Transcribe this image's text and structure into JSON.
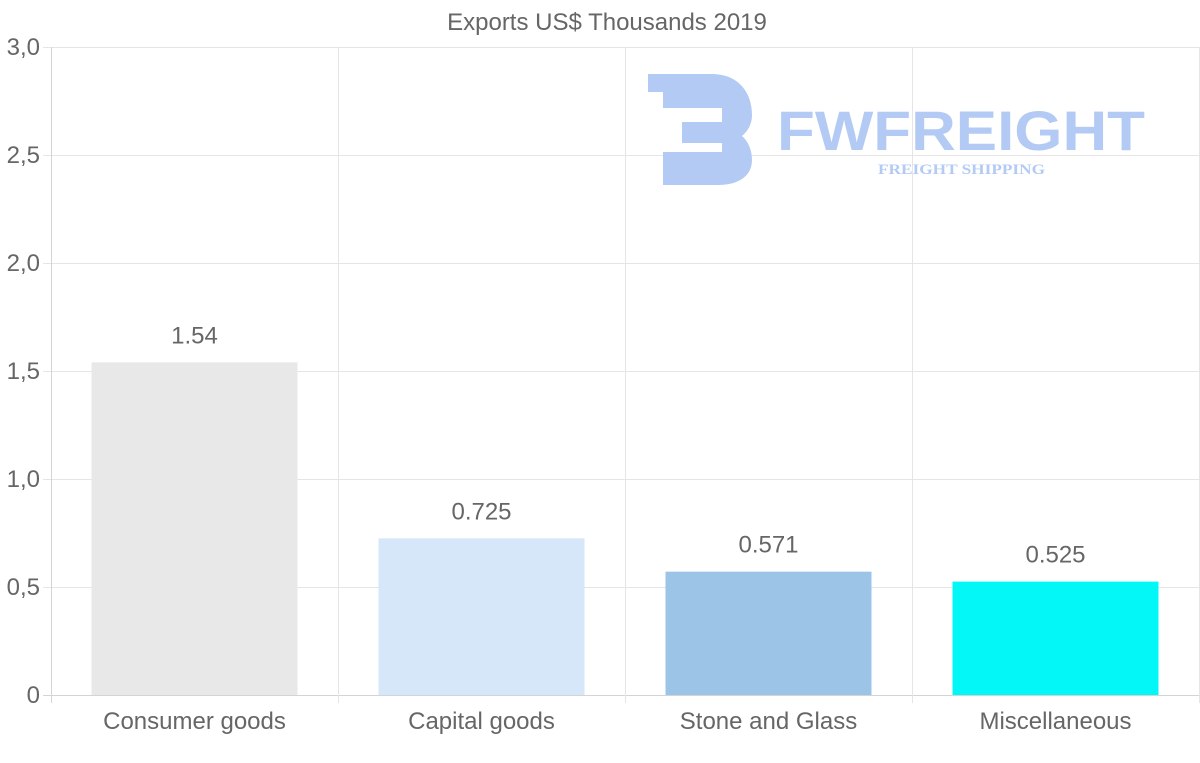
{
  "chart_data": {
    "type": "bar",
    "title": "Exports US$ Thousands 2019",
    "categories": [
      "Consumer goods",
      "Capital goods",
      "Stone and Glass",
      "Miscellaneous"
    ],
    "values": [
      1.54,
      0.725,
      0.571,
      0.525
    ],
    "value_labels": [
      "1.54",
      "0.725",
      "0.571",
      "0.525"
    ],
    "bar_colors": [
      "#e8e8e8",
      "#d6e7f9",
      "#9bc4e7",
      "#03f7f7"
    ],
    "xlabel": "",
    "ylabel": "",
    "ylim": [
      0,
      3.0
    ],
    "yticks": [
      0,
      0.5,
      1.0,
      1.5,
      2.0,
      2.5,
      3.0
    ],
    "ytick_labels": [
      "0",
      "0,5",
      "1,0",
      "1,5",
      "2,0",
      "2,5",
      "3,0"
    ],
    "grid": true,
    "legend": "none"
  },
  "watermark": {
    "brand": "FWFREIGHT",
    "tagline": "FREIGHT SHIPPING",
    "color": "#b3cbf4"
  }
}
